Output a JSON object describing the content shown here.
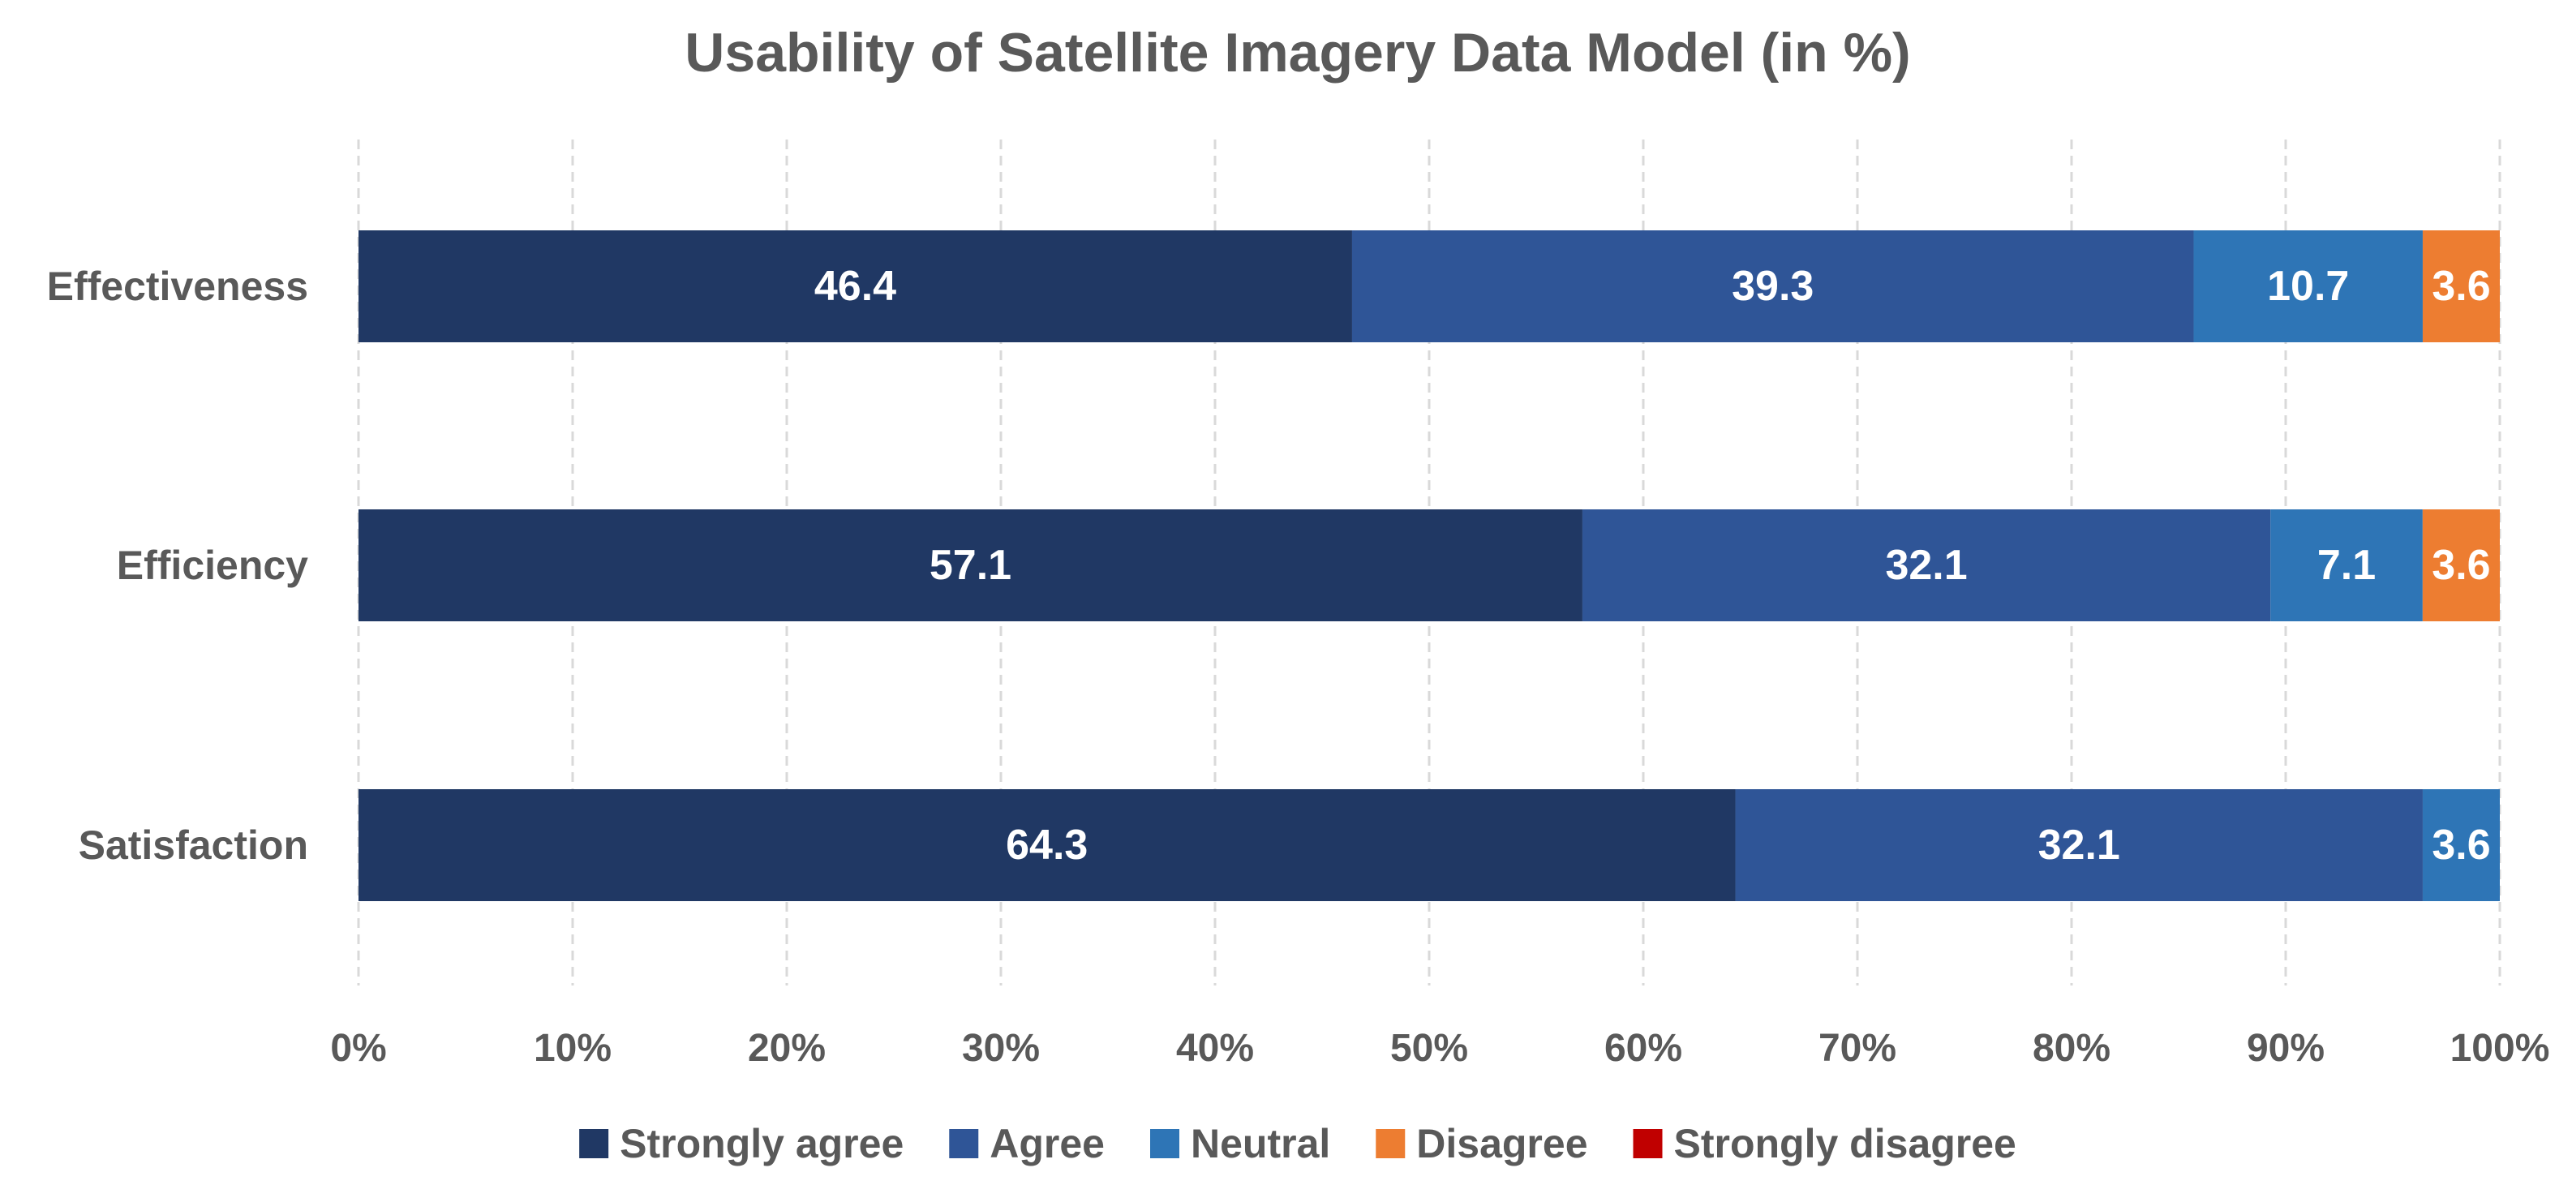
{
  "chart_data": {
    "type": "bar",
    "orientation": "horizontal",
    "stacked": "percent",
    "title": "Usability of Satellite Imagery Data Model (in %)",
    "categories": [
      "Effectiveness",
      "Efficiency",
      "Satisfaction"
    ],
    "series": [
      {
        "name": "Strongly agree",
        "color": "#203864",
        "values": [
          46.4,
          57.1,
          64.3
        ]
      },
      {
        "name": "Agree",
        "color": "#2F5597",
        "values": [
          39.3,
          32.1,
          32.1
        ]
      },
      {
        "name": "Neutral",
        "color": "#2E75B6",
        "values": [
          10.7,
          7.1,
          3.6
        ]
      },
      {
        "name": "Disagree",
        "color": "#ED7D31",
        "values": [
          3.6,
          3.6,
          0
        ]
      },
      {
        "name": "Strongly disagree",
        "color": "#C00000",
        "values": [
          0,
          0,
          0
        ]
      }
    ],
    "xlim": [
      0,
      100
    ],
    "xticks": [
      "0%",
      "10%",
      "20%",
      "30%",
      "40%",
      "50%",
      "60%",
      "70%",
      "80%",
      "90%",
      "100%"
    ],
    "xlabel": "",
    "ylabel": "",
    "grid": true,
    "legend_position": "bottom"
  }
}
